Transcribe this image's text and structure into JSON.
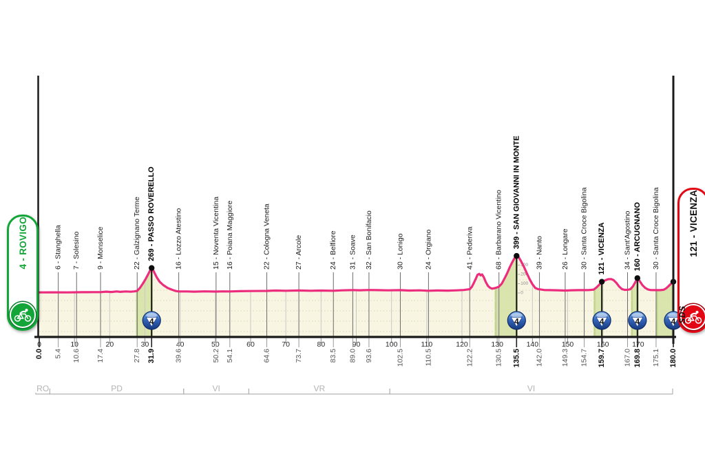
{
  "signs": {
    "start": {
      "label": "4 - ROVIGO",
      "color": "#13a538"
    },
    "finish": {
      "label": "121 - VICENZA",
      "color": "#e30613"
    }
  },
  "branding": {
    "sds_label": "SDS"
  },
  "chart_data": {
    "type": "area",
    "title": "",
    "x_unit": "km",
    "x_range": [
      0,
      180
    ],
    "xticks": [
      0,
      10,
      20,
      30,
      40,
      50,
      60,
      70,
      80,
      90,
      100,
      110,
      120,
      130,
      140,
      150,
      160,
      170
    ],
    "grid": "dotted-horizontal + vertical-10km",
    "start": {
      "km": 0,
      "km_label": "0.0",
      "elev": 6,
      "name": "ROVIGO"
    },
    "finish": {
      "km": 180,
      "km_label": "180.0",
      "elev": 121,
      "name": "VICENZA",
      "climb_cat": "4"
    },
    "waypoints": [
      {
        "km": 5.4,
        "km_label": "5.4",
        "elev": "6",
        "name": "Stanghella",
        "bold": false,
        "cat": null
      },
      {
        "km": 10.6,
        "km_label": "10.6",
        "elev": "7",
        "name": "Solesino",
        "bold": false,
        "cat": null
      },
      {
        "km": 17.4,
        "km_label": "17.4",
        "elev": "9",
        "name": "Monselice",
        "bold": false,
        "cat": null
      },
      {
        "km": 27.8,
        "km_label": "27.8",
        "elev": "22",
        "name": "Galzignano Terme",
        "bold": false,
        "cat": null
      },
      {
        "km": 31.9,
        "km_label": "31.9",
        "elev": "269",
        "name": "PASSO ROVERELLO",
        "bold": true,
        "cat": "4"
      },
      {
        "km": 39.6,
        "km_label": "39.6",
        "elev": "16",
        "name": "Lozzo Atestino",
        "bold": false,
        "cat": null
      },
      {
        "km": 50.2,
        "km_label": "50.2",
        "elev": "15",
        "name": "Noventa Vicentina",
        "bold": false,
        "cat": null
      },
      {
        "km": 54.1,
        "km_label": "54.1",
        "elev": "16",
        "name": "Poiana Maggiore",
        "bold": false,
        "cat": null
      },
      {
        "km": 64.6,
        "km_label": "64.6",
        "elev": "22",
        "name": "Cologna Veneta",
        "bold": false,
        "cat": null
      },
      {
        "km": 73.7,
        "km_label": "73.7",
        "elev": "27",
        "name": "Arcole",
        "bold": false,
        "cat": null
      },
      {
        "km": 83.5,
        "km_label": "83.5",
        "elev": "24",
        "name": "Belfiore",
        "bold": false,
        "cat": null
      },
      {
        "km": 89.0,
        "km_label": "89.0",
        "elev": "31",
        "name": "Soave",
        "bold": false,
        "cat": null
      },
      {
        "km": 93.6,
        "km_label": "93.6",
        "elev": "32",
        "name": "San Bonifacio",
        "bold": false,
        "cat": null
      },
      {
        "km": 102.5,
        "km_label": "102.5",
        "elev": "30",
        "name": "Lonigo",
        "bold": false,
        "cat": null
      },
      {
        "km": 110.5,
        "km_label": "110.5",
        "elev": "24",
        "name": "Orgiano",
        "bold": false,
        "cat": null
      },
      {
        "km": 122.2,
        "km_label": "122.2",
        "elev": "41",
        "name": "Pederiva",
        "bold": false,
        "cat": null
      },
      {
        "km": 130.5,
        "km_label": "130.5",
        "elev": "68",
        "name": "Barbarano Vicentino",
        "bold": false,
        "cat": null
      },
      {
        "km": 135.5,
        "km_label": "135.5",
        "elev": "399",
        "name": "SAN GIOVANNI IN MONTE",
        "bold": true,
        "cat": "4"
      },
      {
        "km": 142.0,
        "km_label": "142.0",
        "elev": "39",
        "name": "Nanto",
        "bold": false,
        "cat": null
      },
      {
        "km": 149.3,
        "km_label": "149.3",
        "elev": "26",
        "name": "Longare",
        "bold": false,
        "cat": null
      },
      {
        "km": 154.7,
        "km_label": "154.7",
        "elev": "30",
        "name": "Santa Croce Bigolina",
        "bold": false,
        "cat": null
      },
      {
        "km": 159.7,
        "km_label": "159.7",
        "elev": "121",
        "name": "VICENZA",
        "bold": true,
        "cat": "4"
      },
      {
        "km": 167.0,
        "km_label": "167.0",
        "elev": "34",
        "name": "Sant'Agostino",
        "bold": false,
        "cat": null
      },
      {
        "km": 169.8,
        "km_label": "169.8",
        "elev": "160",
        "name": "ARCUGNANO",
        "bold": true,
        "cat": "4"
      },
      {
        "km": 175.1,
        "km_label": "175.1",
        "elev": "30",
        "name": "Santa Croce Bigolina",
        "bold": false,
        "cat": null
      }
    ],
    "profile": [
      [
        0,
        6
      ],
      [
        4,
        7
      ],
      [
        8,
        6
      ],
      [
        12,
        8
      ],
      [
        15,
        9
      ],
      [
        17.4,
        9
      ],
      [
        19,
        14
      ],
      [
        20.5,
        10
      ],
      [
        22,
        16
      ],
      [
        23,
        12
      ],
      [
        24.5,
        16
      ],
      [
        26,
        13
      ],
      [
        27,
        17
      ],
      [
        27.8,
        22
      ],
      [
        28.6,
        55
      ],
      [
        29.4,
        100
      ],
      [
        30.2,
        150
      ],
      [
        30.9,
        200
      ],
      [
        31.5,
        245
      ],
      [
        31.9,
        269
      ],
      [
        32.3,
        250
      ],
      [
        32.8,
        210
      ],
      [
        33.4,
        165
      ],
      [
        34.2,
        120
      ],
      [
        35.2,
        85
      ],
      [
        36.4,
        55
      ],
      [
        37.8,
        33
      ],
      [
        38.8,
        21
      ],
      [
        39.6,
        16
      ],
      [
        42,
        16
      ],
      [
        44,
        14
      ],
      [
        47,
        17
      ],
      [
        50.2,
        15
      ],
      [
        52,
        17
      ],
      [
        54.1,
        16
      ],
      [
        57,
        19
      ],
      [
        60,
        21
      ],
      [
        64.6,
        22
      ],
      [
        67,
        26
      ],
      [
        70,
        24
      ],
      [
        73.7,
        27
      ],
      [
        77,
        24
      ],
      [
        80,
        26
      ],
      [
        83.5,
        24
      ],
      [
        86,
        28
      ],
      [
        89,
        31
      ],
      [
        91,
        29
      ],
      [
        93.6,
        32
      ],
      [
        96,
        30
      ],
      [
        99,
        28
      ],
      [
        102.5,
        30
      ],
      [
        105,
        26
      ],
      [
        108,
        28
      ],
      [
        110.5,
        24
      ],
      [
        113,
        27
      ],
      [
        116,
        25
      ],
      [
        118.5,
        28
      ],
      [
        120.5,
        32
      ],
      [
        121.4,
        36
      ],
      [
        122.2,
        41
      ],
      [
        122.8,
        65
      ],
      [
        123.4,
        110
      ],
      [
        124,
        160
      ],
      [
        124.4,
        195
      ],
      [
        124.9,
        205
      ],
      [
        125.3,
        190
      ],
      [
        125.7,
        200
      ],
      [
        126.2,
        170
      ],
      [
        126.8,
        115
      ],
      [
        127.4,
        75
      ],
      [
        128,
        55
      ],
      [
        128.6,
        47
      ],
      [
        129.3,
        52
      ],
      [
        130,
        60
      ],
      [
        130.5,
        68
      ],
      [
        131.3,
        100
      ],
      [
        132,
        150
      ],
      [
        132.8,
        210
      ],
      [
        133.6,
        280
      ],
      [
        134.4,
        340
      ],
      [
        135,
        380
      ],
      [
        135.5,
        399
      ],
      [
        136.1,
        385
      ],
      [
        136.8,
        340
      ],
      [
        137.6,
        280
      ],
      [
        138.4,
        215
      ],
      [
        139.2,
        150
      ],
      [
        140,
        95
      ],
      [
        140.8,
        55
      ],
      [
        141.5,
        42
      ],
      [
        142,
        39
      ],
      [
        143.5,
        31
      ],
      [
        145,
        30
      ],
      [
        147,
        29
      ],
      [
        149.3,
        26
      ],
      [
        151,
        29
      ],
      [
        153,
        30
      ],
      [
        154.7,
        30
      ],
      [
        156,
        31
      ],
      [
        157.4,
        36
      ],
      [
        158.2,
        60
      ],
      [
        159,
        90
      ],
      [
        159.7,
        121
      ],
      [
        160.6,
        135
      ],
      [
        161.5,
        148
      ],
      [
        162.3,
        150
      ],
      [
        163,
        140
      ],
      [
        163.8,
        110
      ],
      [
        164.6,
        70
      ],
      [
        165.4,
        42
      ],
      [
        166.2,
        33
      ],
      [
        167,
        34
      ],
      [
        167.8,
        40
      ],
      [
        168.5,
        70
      ],
      [
        169.2,
        115
      ],
      [
        169.8,
        160
      ],
      [
        170.4,
        130
      ],
      [
        171.2,
        85
      ],
      [
        172,
        55
      ],
      [
        172.8,
        38
      ],
      [
        173.6,
        31
      ],
      [
        175.1,
        30
      ],
      [
        176.3,
        30
      ],
      [
        177.2,
        34
      ],
      [
        177.9,
        48
      ],
      [
        178.6,
        72
      ],
      [
        179.3,
        98
      ],
      [
        180,
        121
      ]
    ],
    "climb_bands": [
      [
        27.5,
        32.2
      ],
      [
        129.3,
        135.8
      ],
      [
        157.4,
        160.1
      ],
      [
        168,
        170.2
      ],
      [
        175.1,
        180
      ]
    ],
    "climb_badges": [
      {
        "km": 31.9,
        "cat": "4"
      },
      {
        "km": 135.5,
        "cat": "4"
      },
      {
        "km": 159.7,
        "cat": "4"
      },
      {
        "km": 169.8,
        "cat": "4"
      },
      {
        "km": 180,
        "cat": "4"
      }
    ],
    "elev_scale": {
      "at_km": 135.5,
      "ticks": [
        "0",
        "100",
        "200",
        "300"
      ]
    },
    "provinces": [
      {
        "code": "RO",
        "from_km": 0,
        "to_km": 3
      },
      {
        "code": "PD",
        "from_km": 3,
        "to_km": 41
      },
      {
        "code": "VI",
        "from_km": 41,
        "to_km": 59.5
      },
      {
        "code": "VR",
        "from_km": 59.5,
        "to_km": 99.5
      },
      {
        "code": "VI",
        "from_km": 99.5,
        "to_km": 179.8
      }
    ],
    "colors": {
      "profile_pink": "#ec2c7d",
      "area_cream": "#f8f5e2",
      "climb_green": "#d9e5ac",
      "climb_green_edge": "#c0d48c",
      "dotted_grid": "#dcd7ba",
      "v_grid": "#c9c9c4",
      "badge_blue": "#2150a8",
      "sign_green": "#13a538",
      "sign_red": "#e30613"
    }
  }
}
